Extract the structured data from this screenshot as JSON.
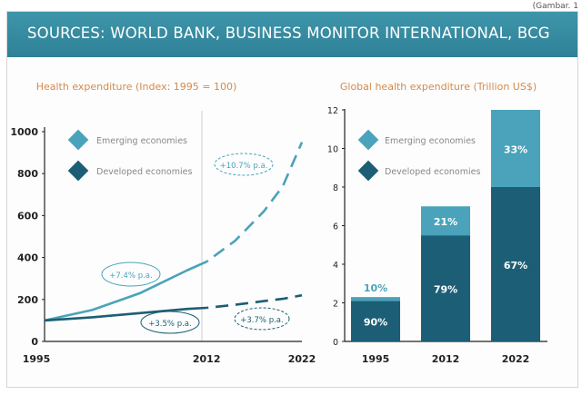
{
  "page": {
    "caption": "(Gambar. 1"
  },
  "header": {
    "title": "SOURCES: WORLD BANK, BUSINESS MONITOR INTERNATIONAL, BCG"
  },
  "colors": {
    "header": "#3a8ea4",
    "emerging": "#4aa3ba",
    "developed": "#1c5e75",
    "orange": "#d38a4b",
    "axis": "#222222"
  },
  "chart_data": [
    {
      "type": "line",
      "title": "Health expenditure (Index: 1995 = 100)",
      "x_ticks": [
        "1995",
        "2012",
        "2022"
      ],
      "ylim": [
        0,
        1000
      ],
      "y_ticks": [
        "0",
        "200",
        "400",
        "600",
        "800",
        "1000"
      ],
      "legend": [
        "Emerging economies",
        "Developed economies"
      ],
      "series": [
        {
          "name": "Emerging economies",
          "x": [
            1995,
            2000,
            2005,
            2010,
            2012,
            2015,
            2018,
            2020,
            2022
          ],
          "y": [
            100,
            150,
            230,
            340,
            380,
            480,
            620,
            740,
            950
          ]
        },
        {
          "name": "Developed economies",
          "x": [
            1995,
            2000,
            2005,
            2010,
            2012,
            2015,
            2018,
            2020,
            2022
          ],
          "y": [
            100,
            115,
            135,
            155,
            160,
            175,
            192,
            203,
            220
          ]
        }
      ],
      "annotations": [
        "+7.4% p.a.",
        "+3.5% p.a.",
        "+10.7% p.a.",
        "+3.7% p.a."
      ]
    },
    {
      "type": "bar",
      "title": "Global health expenditure (Trillion US$)",
      "categories": [
        "1995",
        "2012",
        "2022"
      ],
      "ylim": [
        0,
        12
      ],
      "y_ticks": [
        "0",
        "2",
        "4",
        "6",
        "8",
        "10",
        "12"
      ],
      "legend": [
        "Emerging economies",
        "Developed economies"
      ],
      "series": [
        {
          "name": "Developed economies",
          "values": [
            2.1,
            5.5,
            8.0
          ],
          "labels": [
            "90%",
            "79%",
            "67%"
          ]
        },
        {
          "name": "Emerging economies",
          "values": [
            0.2,
            1.5,
            4.0
          ],
          "labels": [
            "10%",
            "21%",
            "33%"
          ]
        }
      ]
    }
  ]
}
